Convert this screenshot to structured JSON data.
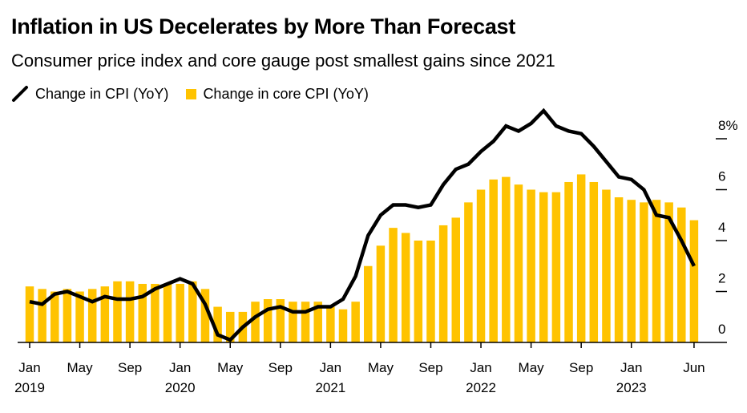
{
  "header": {
    "title": "Inflation in US Decelerates by More Than Forecast",
    "subtitle": "Consumer price index and core gauge post smallest gains since 2021"
  },
  "legend": {
    "cpi_label": "Change in CPI (YoY)",
    "core_label": "Change in core CPI (YoY)"
  },
  "colors": {
    "cpi_line": "#000000",
    "core_bar": "#FFC300",
    "axis": "#000000"
  },
  "chart_data": {
    "type": "bar",
    "title": "Inflation in US Decelerates by More Than Forecast",
    "subtitle": "Consumer price index and core gauge post smallest gains since 2021",
    "x_range": [
      "Jan 2019",
      "Jun 2023"
    ],
    "ylim": [
      0,
      8
    ],
    "yticks": [
      0,
      2,
      4,
      6,
      8
    ],
    "ytick_labels": [
      "0",
      "2",
      "4",
      "6",
      "8%"
    ],
    "y_axis_side": "right",
    "xtick_labels": [
      {
        "month": "Jan",
        "year": "2019",
        "index": 0
      },
      {
        "month": "May",
        "year": "",
        "index": 4
      },
      {
        "month": "Sep",
        "year": "",
        "index": 8
      },
      {
        "month": "Jan",
        "year": "2020",
        "index": 12
      },
      {
        "month": "May",
        "year": "",
        "index": 16
      },
      {
        "month": "Sep",
        "year": "",
        "index": 20
      },
      {
        "month": "Jan",
        "year": "2021",
        "index": 24
      },
      {
        "month": "May",
        "year": "",
        "index": 28
      },
      {
        "month": "Sep",
        "year": "",
        "index": 32
      },
      {
        "month": "Jan",
        "year": "2022",
        "index": 36
      },
      {
        "month": "May",
        "year": "",
        "index": 40
      },
      {
        "month": "Sep",
        "year": "",
        "index": 44
      },
      {
        "month": "Jan",
        "year": "2023",
        "index": 48
      },
      {
        "month": "Jun",
        "year": "",
        "index": 53
      }
    ],
    "legend_position": "top-left",
    "grid": false,
    "series": [
      {
        "name": "Change in core CPI (YoY)",
        "type": "bar",
        "values": [
          2.2,
          2.1,
          2.0,
          2.1,
          2.0,
          2.1,
          2.2,
          2.4,
          2.4,
          2.3,
          2.3,
          2.3,
          2.3,
          2.4,
          2.1,
          1.4,
          1.2,
          1.2,
          1.6,
          1.7,
          1.7,
          1.6,
          1.6,
          1.6,
          1.4,
          1.3,
          1.6,
          3.0,
          3.8,
          4.5,
          4.3,
          4.0,
          4.0,
          4.6,
          4.9,
          5.5,
          6.0,
          6.4,
          6.5,
          6.2,
          6.0,
          5.9,
          5.9,
          6.3,
          6.6,
          6.3,
          6.0,
          5.7,
          5.6,
          5.5,
          5.6,
          5.5,
          5.3,
          4.8
        ]
      },
      {
        "name": "Change in CPI (YoY)",
        "type": "line",
        "values": [
          1.6,
          1.5,
          1.9,
          2.0,
          1.8,
          1.6,
          1.8,
          1.7,
          1.7,
          1.8,
          2.1,
          2.3,
          2.5,
          2.3,
          1.5,
          0.3,
          0.1,
          0.6,
          1.0,
          1.3,
          1.4,
          1.2,
          1.2,
          1.4,
          1.4,
          1.7,
          2.6,
          4.2,
          5.0,
          5.4,
          5.4,
          5.3,
          5.4,
          6.2,
          6.8,
          7.0,
          7.5,
          7.9,
          8.5,
          8.3,
          8.6,
          9.1,
          8.5,
          8.3,
          8.2,
          7.7,
          7.1,
          6.5,
          6.4,
          6.0,
          5.0,
          4.9,
          4.0,
          3.0
        ]
      }
    ]
  }
}
